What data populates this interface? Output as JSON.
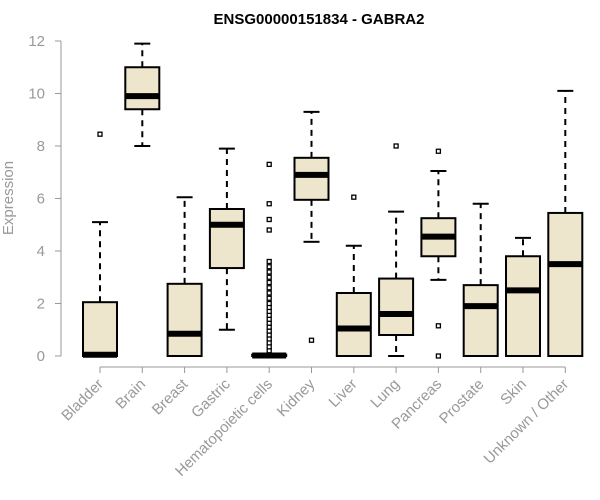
{
  "chart_data": {
    "type": "boxplot",
    "title": "ENSG00000151834 - GABRA2",
    "xlabel": "",
    "ylabel": "Expression",
    "ylim": [
      0,
      12
    ],
    "yticks": [
      0,
      2,
      4,
      6,
      8,
      10,
      12
    ],
    "colors": {
      "box_fill": "#ede6cc",
      "line": "#000000",
      "axis": "#999999"
    },
    "categories": [
      {
        "name": "Bladder",
        "whisker_low": 0,
        "q1": 0,
        "median": 0.05,
        "q3": 2.05,
        "whisker_high": 5.1,
        "outliers": [
          8.45
        ]
      },
      {
        "name": "Brain",
        "whisker_low": 8.0,
        "q1": 9.4,
        "median": 9.9,
        "q3": 11.0,
        "whisker_high": 11.9,
        "outliers": []
      },
      {
        "name": "Breast",
        "whisker_low": 0,
        "q1": 0,
        "median": 0.85,
        "q3": 2.75,
        "whisker_high": 6.05,
        "outliers": []
      },
      {
        "name": "Gastric",
        "whisker_low": 1.0,
        "q1": 3.35,
        "median": 5.0,
        "q3": 5.6,
        "whisker_high": 7.9,
        "outliers": []
      },
      {
        "name": "Hematopoietic cells",
        "whisker_low": 0,
        "q1": 0,
        "median": 0.02,
        "q3": 0.05,
        "whisker_high": 0.08,
        "outliers": [
          0.2,
          0.35,
          0.5,
          0.65,
          0.8,
          0.95,
          1.1,
          1.25,
          1.4,
          1.55,
          1.7,
          1.85,
          2.0,
          2.2,
          2.4,
          2.6,
          2.8,
          3.0,
          3.2,
          3.4,
          3.6,
          4.8,
          5.2,
          5.8,
          7.3
        ]
      },
      {
        "name": "Kidney",
        "whisker_low": 4.35,
        "q1": 5.95,
        "median": 6.9,
        "q3": 7.55,
        "whisker_high": 9.3,
        "outliers": [
          0.6
        ]
      },
      {
        "name": "Liver",
        "whisker_low": 0,
        "q1": 0,
        "median": 1.05,
        "q3": 2.4,
        "whisker_high": 4.2,
        "outliers": [
          6.05
        ]
      },
      {
        "name": "Lung",
        "whisker_low": 0,
        "q1": 0.8,
        "median": 1.6,
        "q3": 2.95,
        "whisker_high": 5.5,
        "outliers": [
          8.0
        ]
      },
      {
        "name": "Pancreas",
        "whisker_low": 2.9,
        "q1": 3.8,
        "median": 4.55,
        "q3": 5.25,
        "whisker_high": 7.05,
        "outliers": [
          0.0,
          1.15,
          7.8
        ]
      },
      {
        "name": "Prostate",
        "whisker_low": 0,
        "q1": 0,
        "median": 1.9,
        "q3": 2.7,
        "whisker_high": 5.8,
        "outliers": []
      },
      {
        "name": "Skin",
        "whisker_low": 0,
        "q1": 0,
        "median": 2.5,
        "q3": 3.8,
        "whisker_high": 4.5,
        "outliers": []
      },
      {
        "name": "Unknown / Other",
        "whisker_low": 0,
        "q1": 0,
        "median": 3.5,
        "q3": 5.45,
        "whisker_high": 10.1,
        "outliers": []
      }
    ]
  }
}
